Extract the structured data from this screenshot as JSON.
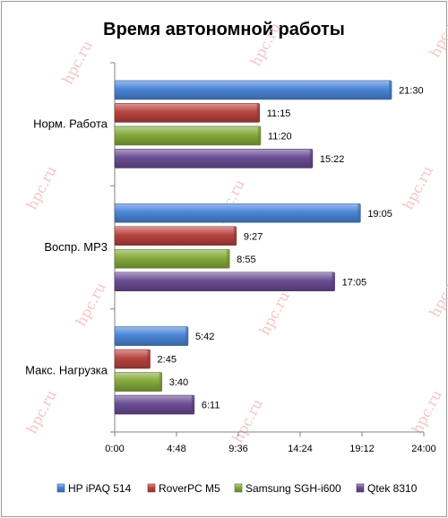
{
  "chart_data": {
    "type": "bar",
    "orientation": "horizontal",
    "title": "Время автономной работы",
    "categories": [
      "Норм. Работа",
      "Воспр. MP3",
      "Макс. Нагрузка"
    ],
    "series": [
      {
        "name": "HP iPAQ 514",
        "color": "#4a86d8",
        "values": [
          1290,
          1145,
          342
        ],
        "labels": [
          "21:30",
          "19:05",
          "5:42"
        ]
      },
      {
        "name": "RoverPC M5",
        "color": "#b84440",
        "values": [
          675,
          567,
          165
        ],
        "labels": [
          "11:15",
          "9:27",
          "2:45"
        ]
      },
      {
        "name": "Samsung SGH-i600",
        "color": "#86aa3c",
        "values": [
          680,
          535,
          220
        ],
        "labels": [
          "11:20",
          "8:55",
          "3:40"
        ]
      },
      {
        "name": "Qtek 8310",
        "color": "#6a4d94",
        "values": [
          922,
          1025,
          371
        ],
        "labels": [
          "15:22",
          "17:05",
          "6:11"
        ]
      }
    ],
    "xlim": [
      0,
      1440
    ],
    "xticks": [
      0,
      288,
      576,
      864,
      1152,
      1440
    ],
    "xtick_labels": [
      "0:00",
      "4:48",
      "9:36",
      "14:24",
      "19:12",
      "24:00"
    ],
    "legend_position": "bottom",
    "grid": false
  },
  "watermark": "hpc.ru"
}
